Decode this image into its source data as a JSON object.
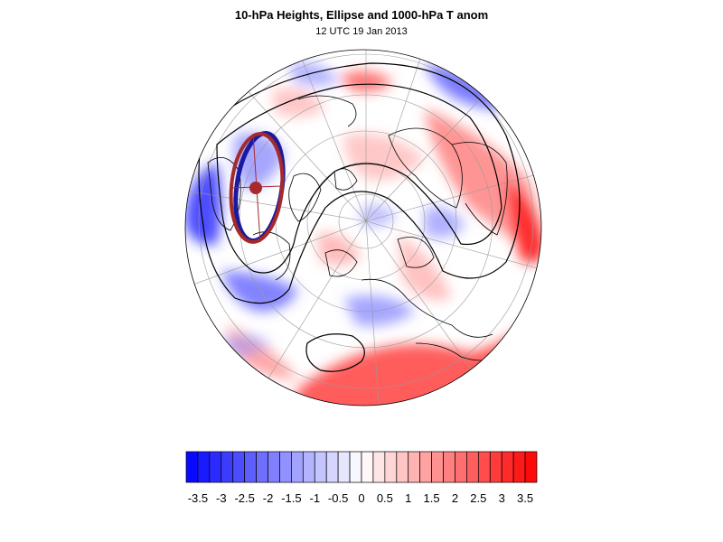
{
  "title": "10-hPa Heights, Ellipse and 1000-hPa T anom",
  "subtitle": "12 UTC 19 Jan 2013",
  "colors": {
    "cold": "#0000ff",
    "warm": "#ff0000",
    "neutral": "#ffffff",
    "ellipse_outer": "#1a1aa0",
    "ellipse_inner": "#a52a2a",
    "contour": "#000000",
    "coastline": "#000000",
    "grid": "#9a9a9a"
  },
  "map": {
    "projection": "north polar stereographic",
    "field": "1000-hPa temperature anomaly",
    "overlays": [
      "10-hPa height contours",
      "polar vortex ellipse",
      "coastlines",
      "lat-lon grid"
    ]
  },
  "colorbar": {
    "min": -3.75,
    "max": 3.75,
    "step": 0.25,
    "labels": [
      "-3.5",
      "-3",
      "-2.5",
      "-2",
      "-1.5",
      "-1",
      "-0.5",
      "0",
      "0.5",
      "1",
      "1.5",
      "2",
      "2.5",
      "3",
      "3.5"
    ]
  }
}
